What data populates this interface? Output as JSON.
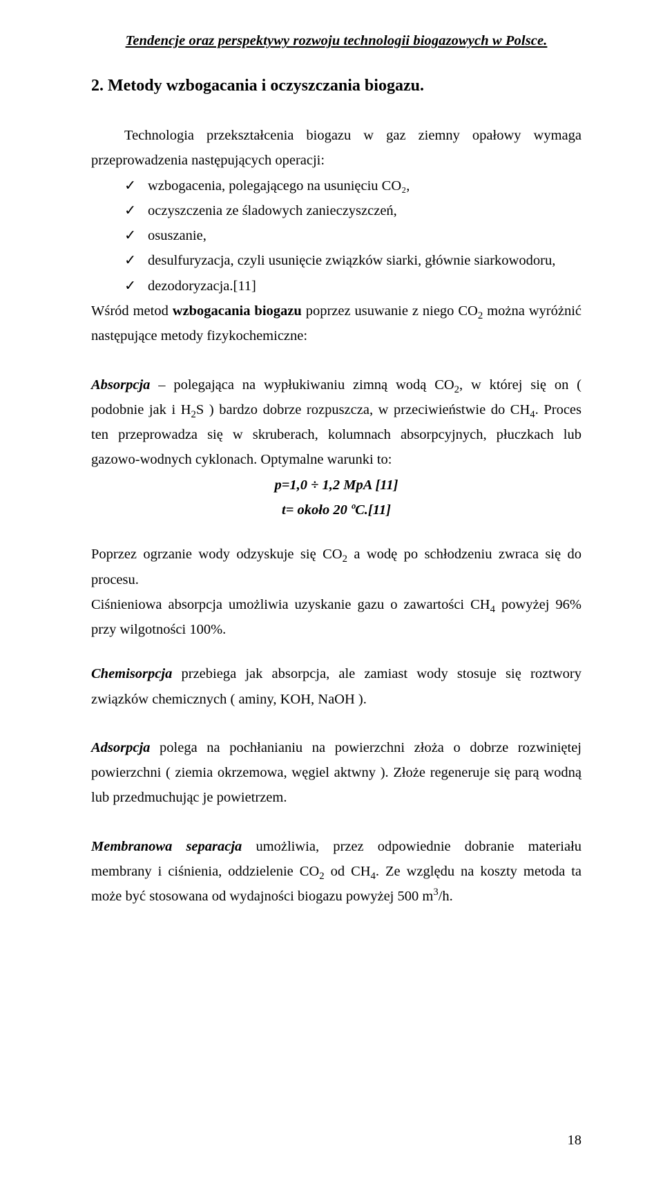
{
  "runningTitle": "Tendencje oraz perspektywy rozwoju technologii biogazowych w Polsce.",
  "sectionHeading": "2. Metody wzbogacania i oczyszczania biogazu.",
  "intro": "Technologia przekształcenia biogazu w gaz ziemny opałowy wymaga przeprowadzenia następujących operacji:",
  "bullets": [
    "wzbogacenia, polegającego na usunięciu CO₂,",
    "oczyszczenia ze śladowych zanieczyszczeń,",
    "osuszanie,",
    "desulfuryzacja, czyli usunięcie związków siarki, głównie siarkowodoru,",
    "dezodoryzacja.[11]"
  ],
  "afterList1_a": "Wśród metod ",
  "afterList1_bold": "wzbogacania biogazu",
  "afterList1_b": " poprzez usuwanie z niego CO",
  "afterList1_c": " można wyróżnić następujące metody fizykochemiczne:",
  "abs_lead": "Absorpcja",
  "abs_text_a": " – polegająca na wypłukiwaniu zimną wodą CO",
  "abs_text_b": ", w której się on ( podobnie jak i H",
  "abs_text_c": "S ) bardzo dobrze rozpuszcza, w przeciwieństwie do CH",
  "abs_text_d": ". Proces ten przeprowadza się w skruberach, kolumnach absorpcyjnych, płuczkach lub gazowo-wodnych cyklonach. Optymalne warunki to:",
  "eq1": "p=1,0 ÷ 1,2 MpA [11]",
  "eq2": "t= około 20 ºC.[11]",
  "para_cool_a": "Poprzez ogrzanie wody odzyskuje się CO",
  "para_cool_b": " a wodę po schłodzeniu zwraca się do procesu.",
  "para_press_a": "Ciśnieniowa absorpcja umożliwia uzyskanie gazu o zawartości CH",
  "para_press_b": " powyżej 96% przy wilgotności 100%.",
  "chemi_lead": "Chemisorpcja",
  "chemi_text": " przebiega jak absorpcja, ale zamiast wody stosuje się roztwory związków chemicznych ( aminy, KOH, NaOH ).",
  "ads_lead": "Adsorpcja",
  "ads_text": " polega na pochłanianiu na powierzchni złoża o dobrze rozwiniętej powierzchni       ( ziemia okrzemowa, węgiel aktwny ). Złoże regeneruje się parą wodną lub przedmuchując je powietrzem.",
  "mem_lead": "Membranowa separacja",
  "mem_text_a": " umożliwia, przez odpowiednie dobranie materiału membrany i ciśnienia, oddzielenie CO",
  "mem_text_b": " od CH",
  "mem_text_c": ". Ze względu na koszty metoda ta może być stosowana od wydajności biogazu powyżej 500 m",
  "mem_text_d": "/h.",
  "pageNumber": "18"
}
